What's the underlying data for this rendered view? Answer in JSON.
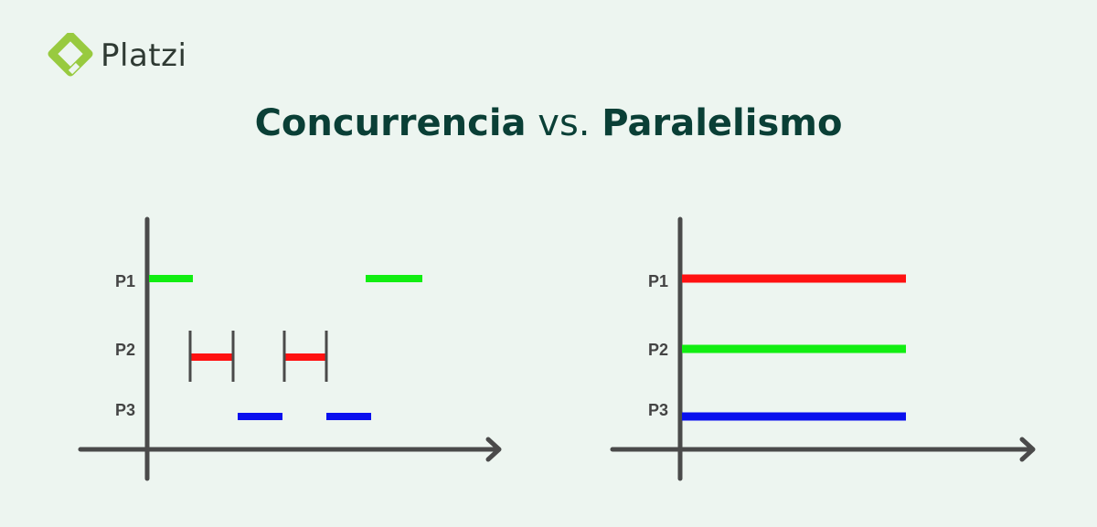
{
  "brand": {
    "name": "Platzi",
    "logo_icon": "platzi-logo-icon",
    "color": "#98ca3f"
  },
  "title": {
    "part1": "Concurrencia",
    "vs": "vs.",
    "part2": "Paralelismo",
    "color": "#0a3f36"
  },
  "colors": {
    "p1": "#11ee11",
    "p2": "#ff1111",
    "p3": "#0a10ee",
    "axis": "#4a4a4a"
  },
  "left_diagram": {
    "labels": [
      "P1",
      "P2",
      "P3"
    ]
  },
  "right_diagram": {
    "labels": [
      "P1",
      "P2",
      "P3"
    ]
  }
}
